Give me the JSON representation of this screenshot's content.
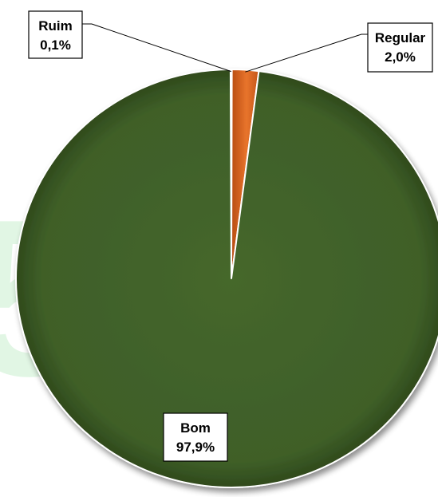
{
  "chart_data": {
    "type": "pie",
    "title": "",
    "slices": [
      {
        "label": "Ruim",
        "value": 0.1,
        "value_label": "0,1%",
        "color": "#1f3b10"
      },
      {
        "label": "Regular",
        "value": 2.0,
        "value_label": "2,0%",
        "color": "#d4601c"
      },
      {
        "label": "Bom",
        "value": 97.9,
        "value_label": "97,9%",
        "color": "#3f5f28"
      }
    ],
    "legend": "none",
    "data_labels": "callout-boxes"
  }
}
